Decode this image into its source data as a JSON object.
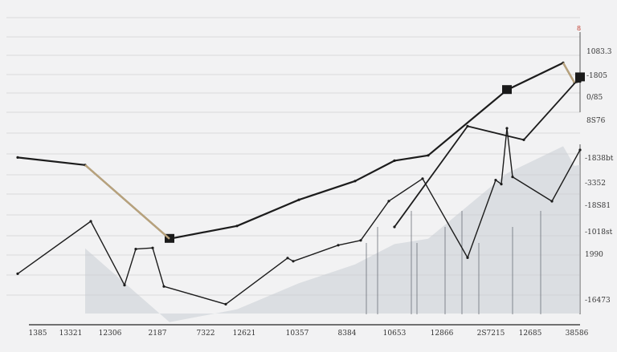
{
  "chart_data": {
    "type": "line",
    "title": "",
    "xlabel": "",
    "ylabel": "",
    "grid": true,
    "legend": "none",
    "x_ticks": [
      "1385",
      "13321",
      "12306",
      "2187",
      "7322",
      "12621",
      "10357",
      "8384",
      "10653",
      "12866",
      "2S7215",
      "12685",
      "38586"
    ],
    "y_ticks_upper": [
      "1083.3",
      "-1805",
      "0/85",
      "8S76"
    ],
    "y_ticks_lower": [
      "-1838bt",
      "-3352",
      "-18S81",
      "-1018st",
      "1990",
      "-16473"
    ],
    "corner_mark": "8",
    "colors": {
      "main_line": "#1c1c1c",
      "accent": "#b8a27c",
      "fill": "#c9cdd4",
      "grid": "#d9d9db"
    },
    "series": [
      {
        "x": [
          0,
          12,
          27,
          39,
          50,
          60,
          67,
          73,
          87,
          97,
          99,
          100
        ],
        "values": [
          9.33,
          8.86,
          4.26,
          5.06,
          6.69,
          7.86,
          9.13,
          9.46,
          13.54,
          15.23,
          14.0,
          14.07
        ]
      },
      {
        "x": [
          0,
          13,
          19,
          21,
          24,
          26,
          37,
          48,
          49,
          57,
          61,
          66,
          72,
          80,
          85,
          86,
          87,
          88,
          95,
          100
        ],
        "values": [
          2.08,
          5.35,
          1.37,
          3.62,
          3.69,
          1.29,
          0.18,
          3.06,
          2.86,
          3.86,
          4.16,
          6.61,
          8.01,
          3.08,
          7.92,
          7.67,
          11.15,
          8.12,
          6.6,
          9.8
        ]
      },
      {
        "x": [
          67,
          80,
          90,
          100
        ],
        "values": [
          5.0,
          11.28,
          10.43,
          14.33
        ]
      }
    ]
  }
}
